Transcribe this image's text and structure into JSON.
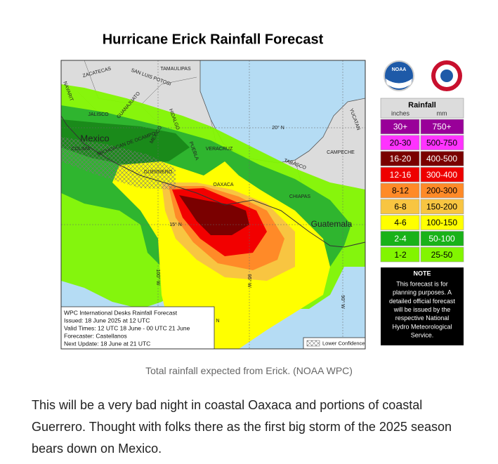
{
  "header": {
    "title": "Hurricane Erick Rainfall Forecast"
  },
  "map": {
    "labels": [
      "ZACATECAS",
      "SAN LUIS POTOSI",
      "TAMAULIPAS",
      "NAYARIT",
      "JALISCO",
      "GUANAJUATO",
      "Mexico",
      "COLIMA",
      "MICHOACAN DE OCAMPO",
      "MEXICO",
      "HIDALGO",
      "PUEBLA",
      "VERACRUZ",
      "GUERRERO",
      "OAXACA",
      "20° N",
      "CAMPECHE",
      "YUCATAN",
      "TABASCO",
      "CHIAPAS",
      "Guatemala",
      "15° N",
      "100° W",
      "95° W",
      "90° W",
      "N"
    ],
    "info_box": [
      "WPC International Desks Rainfall Forecast",
      "Issued: 18 June 2025 at 12 UTC",
      "Valid Times: 12 UTC 18 June - 00 UTC 21 June",
      "Forecaster: Castellanos",
      "Next Update: 18 June at 21 UTC"
    ],
    "lower_confidence": "Lower Confidence"
  },
  "logo": "NOAA",
  "legend": {
    "title": "Rainfall",
    "units": [
      "inches",
      "mm"
    ],
    "rows": [
      [
        "30+",
        "750+"
      ],
      [
        "20-30",
        "500-750"
      ],
      [
        "16-20",
        "400-500"
      ],
      [
        "12-16",
        "300-400"
      ],
      [
        "8-12",
        "200-300"
      ],
      [
        "6-8",
        "150-200"
      ],
      [
        "4-6",
        "100-150"
      ],
      [
        "2-4",
        "50-100"
      ],
      [
        "1-2",
        "25-50"
      ]
    ]
  },
  "note": {
    "title": "NOTE",
    "lines": [
      "This forecast is for",
      "planning purposes. A",
      "detailed official forecast",
      "will be issued by the",
      "respective National",
      "Hydro Meteorological",
      "Service."
    ]
  },
  "caption": "Total rainfall expected from Erick. (NOAA WPC)",
  "paragraph": "This will be a very bad night in coastal Oaxaca and portions of coastal Guerrero. Thought with folks there as the first big storm of the 2025 season bears down on Mexico."
}
